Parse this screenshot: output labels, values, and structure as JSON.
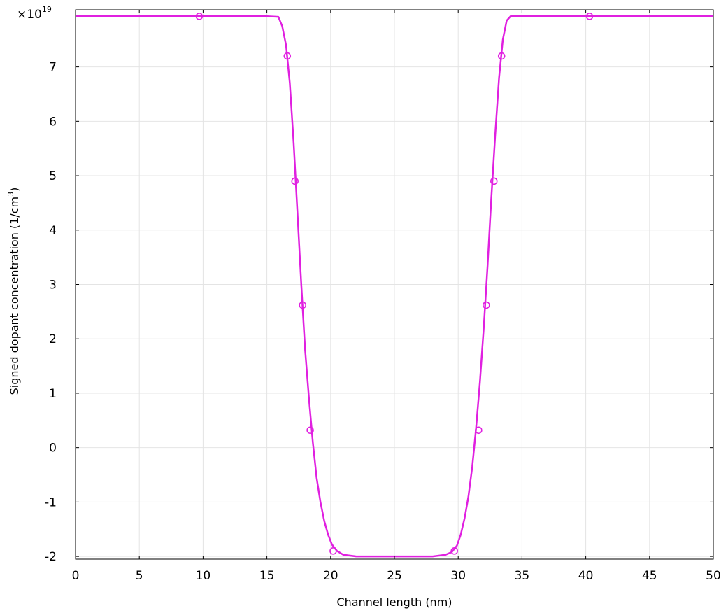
{
  "chart_data": {
    "type": "line",
    "title": "",
    "xlabel": "Channel length (nm)",
    "ylabel_main": "Signed dopant concentration (1/cm",
    "ylabel_sup": "3",
    "ylabel_close": ")",
    "y_multiplier_base": "×10",
    "y_multiplier_exp": "19",
    "xlim": [
      0,
      50
    ],
    "ylim": [
      -2.05,
      8.05
    ],
    "xticks": [
      0,
      5,
      10,
      15,
      20,
      25,
      30,
      35,
      40,
      45,
      50
    ],
    "yticks": [
      -2,
      -1,
      0,
      1,
      2,
      3,
      4,
      5,
      6,
      7
    ],
    "grid": true,
    "series": [
      {
        "color": "#e020e0",
        "x": [
          0,
          5,
          10,
          15,
          15.9,
          16.2,
          16.5,
          16.8,
          17.1,
          17.4,
          17.7,
          18.0,
          18.3,
          18.6,
          18.9,
          19.2,
          19.5,
          19.8,
          20.1,
          20.5,
          21.0,
          22.0,
          25.0,
          28.0,
          29.0,
          29.5,
          29.9,
          30.2,
          30.5,
          30.8,
          31.1,
          31.4,
          31.7,
          32.0,
          32.3,
          32.6,
          32.9,
          33.2,
          33.5,
          33.8,
          34.1,
          35,
          40,
          45,
          50
        ],
        "y": [
          7.93,
          7.93,
          7.93,
          7.93,
          7.92,
          7.75,
          7.4,
          6.7,
          5.6,
          4.3,
          3.0,
          1.8,
          0.9,
          0.1,
          -0.55,
          -1.0,
          -1.35,
          -1.6,
          -1.78,
          -1.9,
          -1.97,
          -2.0,
          -2.0,
          -2.0,
          -1.97,
          -1.92,
          -1.8,
          -1.6,
          -1.3,
          -0.9,
          -0.35,
          0.35,
          1.2,
          2.2,
          3.35,
          4.6,
          5.75,
          6.8,
          7.5,
          7.85,
          7.93,
          7.93,
          7.93,
          7.93,
          7.93
        ],
        "markers_x": [
          9.7,
          16.6,
          17.2,
          17.8,
          18.4,
          20.2,
          29.7,
          31.6,
          32.2,
          32.8,
          33.4,
          40.3
        ],
        "markers_y": [
          7.93,
          7.2,
          4.9,
          2.62,
          0.32,
          -1.9,
          -1.9,
          0.32,
          2.62,
          4.9,
          7.2,
          7.93
        ]
      }
    ]
  }
}
